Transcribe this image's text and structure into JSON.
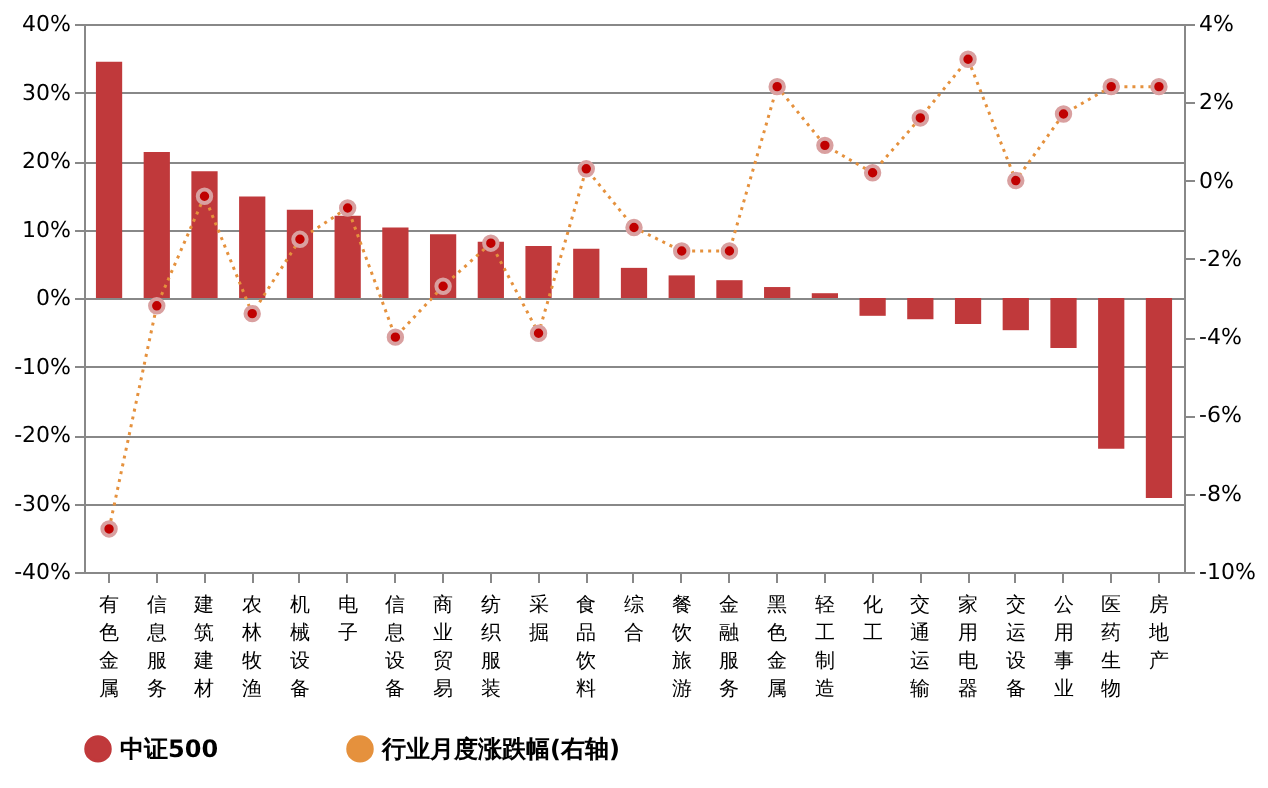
{
  "chart_data": {
    "type": "bar",
    "categories": [
      "有色金属",
      "信息服务",
      "建筑建材",
      "农林牧渔",
      "机械设备",
      "电子",
      "信息设备",
      "商业贸易",
      "纺织服装",
      "采掘",
      "食品饮料",
      "综合",
      "餐饮旅游",
      "金融服务",
      "黑色金属",
      "轻工制造",
      "化工",
      "交通运输",
      "家用电器",
      "交运设备",
      "公用事业",
      "医药生物",
      "房地产"
    ],
    "series": [
      {
        "name": "中证500",
        "color": "#c0393b",
        "values": [
          34.5,
          21.3,
          18.5,
          14.8,
          12.9,
          12,
          10.3,
          9.3,
          8.2,
          7.6,
          7.2,
          4.4,
          3.3,
          2.6,
          1.6,
          0.7,
          -2.6,
          -3.1,
          -3.8,
          -4.7,
          -7.3,
          -22,
          -29.2
        ]
      },
      {
        "name": "行业月度涨跌幅(右轴)",
        "type": "line",
        "axis": "y2",
        "color": "#e5913d",
        "line_style": "dotted",
        "marker": "circle",
        "values": [
          -8.9,
          -3.2,
          -0.4,
          -3.4,
          -1.5,
          -0.7,
          -4.0,
          -2.7,
          -1.6,
          -3.9,
          0.3,
          -1.2,
          -1.8,
          -1.8,
          2.4,
          0.9,
          0.2,
          1.6,
          3.1,
          0.0,
          1.7,
          2.4,
          2.4
        ]
      }
    ],
    "ylim": [
      -40,
      40
    ],
    "yticks": [
      {
        "value": -40,
        "label": "-40%"
      },
      {
        "value": -30,
        "label": "-30%"
      },
      {
        "value": -20,
        "label": "-20%"
      },
      {
        "value": -10,
        "label": "-10%"
      },
      {
        "value": 0,
        "label": "0%"
      },
      {
        "value": 10,
        "label": "10%"
      },
      {
        "value": 20,
        "label": "20%"
      },
      {
        "value": 30,
        "label": "30%"
      },
      {
        "value": 40,
        "label": "40%"
      }
    ],
    "y2lim": [
      -10,
      4
    ],
    "y2ticks": [
      {
        "value": -10,
        "label": "-10%"
      },
      {
        "value": -8,
        "label": "-8%"
      },
      {
        "value": -6,
        "label": "-6%"
      },
      {
        "value": -4,
        "label": "-4%"
      },
      {
        "value": -2,
        "label": "-2%"
      },
      {
        "value": 0,
        "label": "0%"
      },
      {
        "value": 2,
        "label": "2%"
      },
      {
        "value": 4,
        "label": "4%"
      }
    ],
    "grid": "y",
    "legend": "bottom"
  }
}
